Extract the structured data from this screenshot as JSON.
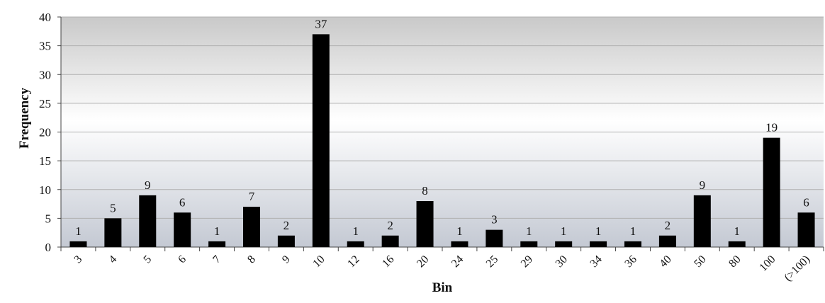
{
  "chart_data": {
    "type": "bar",
    "title": "",
    "xlabel": "Bin",
    "ylabel": "Frequency",
    "categories": [
      "3",
      "4",
      "5",
      "6",
      "7",
      "8",
      "9",
      "10",
      "12",
      "16",
      "20",
      "24",
      "25",
      "29",
      "30",
      "34",
      "36",
      "40",
      "50",
      "80",
      "100",
      "(>100)"
    ],
    "values": [
      1,
      5,
      9,
      6,
      1,
      7,
      2,
      37,
      1,
      2,
      8,
      1,
      3,
      1,
      1,
      1,
      1,
      2,
      9,
      1,
      19,
      6
    ],
    "ylim": [
      0,
      40
    ],
    "yticks": [
      0,
      5,
      10,
      15,
      20,
      25,
      30,
      35,
      40
    ],
    "grid": "horizontal",
    "legend": "none",
    "data_labels": true
  },
  "colors": {
    "bar": "#000000",
    "grid": "#b0b0b0",
    "plot_bg_top": "#c9c9c9",
    "plot_bg_mid": "#ffffff",
    "plot_bg_bottom": "#c4c9d3"
  }
}
